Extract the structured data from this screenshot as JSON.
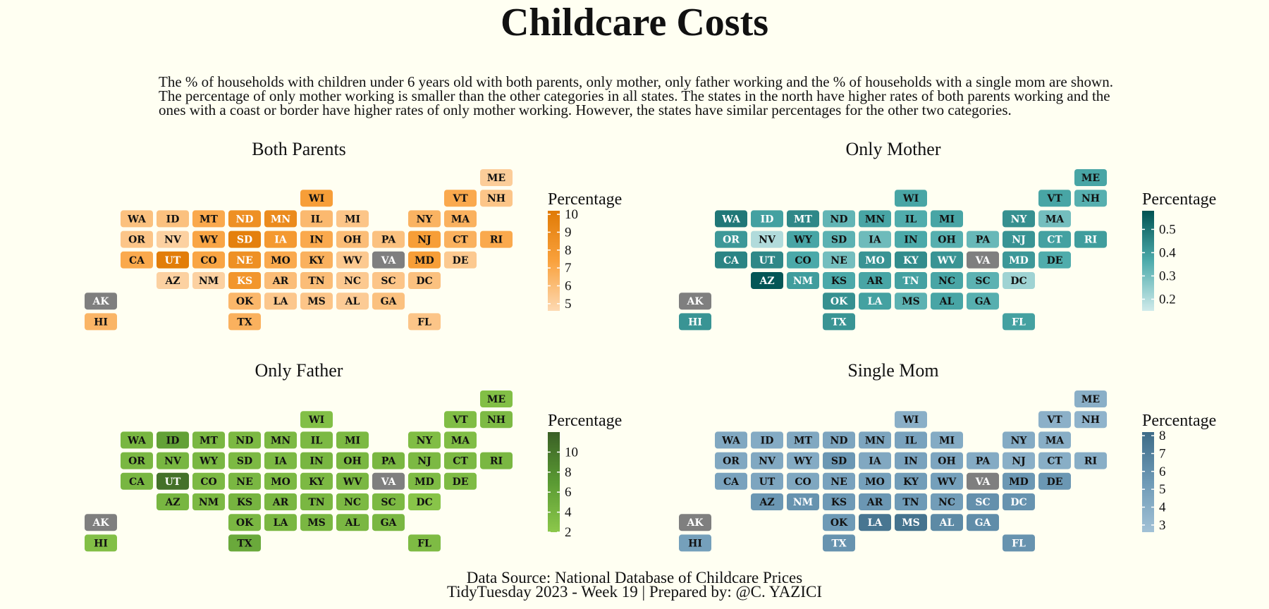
{
  "title": "Childcare Costs",
  "subtitle": "The % of households with children under 6 years old with both parents, only mother, only father working and the % of households with a single mom are shown. The percentage of only mother working is smaller than the other categories in all states. The states in the north have higher rates of both parents working and the ones with a coast or border have higher rates of only mother working. However, the states have similar percentages for the other two categories.",
  "caption": {
    "line1": "Data Source: National Database of Childcare Prices",
    "line2": "TidyTuesday 2023 - Week 19 | Prepared by: @C. YAZICI"
  },
  "grid": [
    [
      "ME",
      0,
      11
    ],
    [
      "WI",
      1,
      6
    ],
    [
      "VT",
      1,
      10
    ],
    [
      "NH",
      1,
      11
    ],
    [
      "WA",
      2,
      1
    ],
    [
      "ID",
      2,
      2
    ],
    [
      "MT",
      2,
      3
    ],
    [
      "ND",
      2,
      4
    ],
    [
      "MN",
      2,
      5
    ],
    [
      "IL",
      2,
      6
    ],
    [
      "MI",
      2,
      7
    ],
    [
      "NY",
      2,
      9
    ],
    [
      "MA",
      2,
      10
    ],
    [
      "OR",
      3,
      1
    ],
    [
      "NV",
      3,
      2
    ],
    [
      "WY",
      3,
      3
    ],
    [
      "SD",
      3,
      4
    ],
    [
      "IA",
      3,
      5
    ],
    [
      "IN",
      3,
      6
    ],
    [
      "OH",
      3,
      7
    ],
    [
      "PA",
      3,
      8
    ],
    [
      "NJ",
      3,
      9
    ],
    [
      "CT",
      3,
      10
    ],
    [
      "RI",
      3,
      11
    ],
    [
      "CA",
      4,
      1
    ],
    [
      "UT",
      4,
      2
    ],
    [
      "CO",
      4,
      3
    ],
    [
      "NE",
      4,
      4
    ],
    [
      "MO",
      4,
      5
    ],
    [
      "KY",
      4,
      6
    ],
    [
      "WV",
      4,
      7
    ],
    [
      "VA",
      4,
      8
    ],
    [
      "MD",
      4,
      9
    ],
    [
      "DE",
      4,
      10
    ],
    [
      "AZ",
      5,
      2
    ],
    [
      "NM",
      5,
      3
    ],
    [
      "KS",
      5,
      4
    ],
    [
      "AR",
      5,
      5
    ],
    [
      "TN",
      5,
      6
    ],
    [
      "NC",
      5,
      7
    ],
    [
      "SC",
      5,
      8
    ],
    [
      "DC",
      5,
      9
    ],
    [
      "AK",
      6,
      0
    ],
    [
      "OK",
      6,
      4
    ],
    [
      "LA",
      6,
      5
    ],
    [
      "MS",
      6,
      6
    ],
    [
      "AL",
      6,
      7
    ],
    [
      "GA",
      6,
      8
    ],
    [
      "HI",
      7,
      0
    ],
    [
      "TX",
      7,
      4
    ],
    [
      "FL",
      7,
      9
    ]
  ],
  "chart_data": [
    {
      "type": "heatmap",
      "title": "Both Parents",
      "legend_title": "Percentage",
      "legend_ticks": [
        10,
        9,
        8,
        7,
        6,
        5
      ],
      "range": [
        4.6,
        10.2
      ],
      "colors": {
        "low": "#fdd9b2",
        "mid": "#f9a13c",
        "high": "#e07a05",
        "missing": "#7f7f7f"
      },
      "values": {
        "ME": 5.2,
        "WI": 7.6,
        "VT": 7.0,
        "NH": 5.6,
        "WA": 5.8,
        "ID": 5.8,
        "MT": 7.0,
        "ND": 8.6,
        "MN": 9.0,
        "IL": 6.2,
        "MI": 5.6,
        "NY": 6.5,
        "MA": 6.6,
        "OR": 5.6,
        "NV": 5.0,
        "WY": 7.2,
        "SD": 9.8,
        "IA": 8.0,
        "IN": 7.0,
        "OH": 6.0,
        "PA": 5.8,
        "NJ": 7.6,
        "CT": 6.6,
        "RI": 7.0,
        "CA": 7.0,
        "UT": 10.0,
        "CO": 7.2,
        "NE": 8.6,
        "MO": 7.0,
        "KY": 6.6,
        "WV": 5.4,
        "VA": null,
        "MD": 7.6,
        "DE": 5.4,
        "AZ": 5.0,
        "NM": 5.0,
        "KS": 8.2,
        "AR": 6.0,
        "TN": 6.0,
        "NC": 5.4,
        "SC": 5.6,
        "DC": 5.8,
        "AK": null,
        "OK": 6.3,
        "LA": 5.5,
        "MS": 5.6,
        "AL": 5.3,
        "GA": 5.8,
        "HI": 6.4,
        "TX": 6.6,
        "FL": 5.6
      }
    },
    {
      "type": "heatmap",
      "title": "Only Mother",
      "legend_title": "Percentage",
      "legend_ticks": [
        0.5,
        0.4,
        0.3,
        0.2
      ],
      "range": [
        0.15,
        0.58
      ],
      "colors": {
        "low": "#cfeaea",
        "mid": "#4dabab",
        "high": "#005252",
        "missing": "#7f7f7f"
      },
      "values": {
        "ME": 0.38,
        "WI": 0.38,
        "VT": 0.38,
        "NH": 0.35,
        "WA": 0.49,
        "ID": 0.39,
        "MT": 0.45,
        "ND": 0.33,
        "MN": 0.38,
        "IL": 0.36,
        "MI": 0.38,
        "NY": 0.43,
        "MA": 0.3,
        "OR": 0.41,
        "NV": 0.2,
        "WY": 0.38,
        "SD": 0.34,
        "IA": 0.31,
        "IN": 0.37,
        "OH": 0.35,
        "PA": 0.32,
        "NJ": 0.42,
        "CT": 0.39,
        "RI": 0.4,
        "CA": 0.46,
        "UT": 0.45,
        "CO": 0.37,
        "NE": 0.3,
        "MO": 0.42,
        "KY": 0.44,
        "WV": 0.42,
        "VA": null,
        "MD": 0.41,
        "DE": 0.36,
        "AZ": 0.57,
        "NM": 0.4,
        "KS": 0.37,
        "AR": 0.38,
        "TN": 0.39,
        "NC": 0.38,
        "SC": 0.34,
        "DC": 0.23,
        "AK": null,
        "OK": 0.43,
        "LA": 0.39,
        "MS": 0.34,
        "AL": 0.38,
        "GA": 0.35,
        "HI": 0.42,
        "TX": 0.42,
        "FL": 0.39
      }
    },
    {
      "type": "heatmap",
      "title": "Only Father",
      "legend_title": "Percentage",
      "legend_ticks": [
        10,
        8,
        6,
        4,
        2
      ],
      "range": [
        2,
        12
      ],
      "colors": {
        "low": "#8cc84b",
        "mid": "#5a9a33",
        "high": "#3a5f25",
        "missing": "#7f7f7f"
      },
      "values": {
        "ME": 3.0,
        "WI": 3.0,
        "VT": 3.2,
        "NH": 3.5,
        "WA": 4.0,
        "ID": 6.2,
        "MT": 3.8,
        "ND": 3.6,
        "MN": 3.6,
        "IL": 3.6,
        "MI": 3.6,
        "NY": 3.2,
        "MA": 3.2,
        "OR": 3.8,
        "NV": 4.0,
        "WY": 3.8,
        "SD": 3.6,
        "IA": 3.6,
        "IN": 4.0,
        "OH": 3.8,
        "PA": 3.8,
        "NJ": 3.6,
        "CT": 3.6,
        "RI": 3.8,
        "CA": 4.0,
        "UT": 10.5,
        "CO": 3.6,
        "NE": 3.8,
        "MO": 3.6,
        "KY": 3.6,
        "WV": 3.8,
        "VA": null,
        "MD": 3.4,
        "DE": 3.4,
        "AZ": 4.0,
        "NM": 3.6,
        "KS": 4.2,
        "AR": 3.8,
        "TN": 3.8,
        "NC": 3.6,
        "SC": 3.6,
        "DC": 2.4,
        "AK": null,
        "OK": 3.8,
        "LA": 3.8,
        "MS": 3.8,
        "AL": 3.8,
        "GA": 3.8,
        "HI": 3.0,
        "TX": 5.4,
        "FL": 3.4
      }
    },
    {
      "type": "heatmap",
      "title": "Single Mom",
      "legend_title": "Percentage",
      "legend_ticks": [
        8,
        7,
        6,
        5,
        4,
        3
      ],
      "range": [
        2.6,
        8.2
      ],
      "colors": {
        "low": "#a2c1d6",
        "mid": "#6e9ab6",
        "high": "#3e6c87",
        "missing": "#7f7f7f"
      },
      "values": {
        "ME": 3.9,
        "WI": 3.9,
        "VT": 3.8,
        "NH": 3.6,
        "WA": 4.4,
        "ID": 4.2,
        "MT": 4.4,
        "ND": 4.6,
        "MN": 4.6,
        "IL": 4.8,
        "MI": 4.2,
        "NY": 4.2,
        "MA": 4.0,
        "OR": 4.4,
        "NV": 4.4,
        "WY": 4.2,
        "SD": 5.6,
        "IA": 4.4,
        "IN": 4.8,
        "OH": 4.6,
        "PA": 4.2,
        "NJ": 3.9,
        "CT": 4.0,
        "RI": 4.0,
        "CA": 4.8,
        "UT": 4.6,
        "CO": 4.5,
        "NE": 4.8,
        "MO": 5.0,
        "KY": 5.2,
        "WV": 5.0,
        "VA": null,
        "MD": 5.6,
        "DE": 5.6,
        "AZ": 5.6,
        "NM": 5.8,
        "KS": 5.4,
        "AR": 5.6,
        "TN": 5.4,
        "NC": 5.2,
        "SC": 6.0,
        "DC": 5.8,
        "AK": null,
        "OK": 5.4,
        "LA": 7.6,
        "MS": 7.8,
        "AL": 6.4,
        "GA": 6.2,
        "HI": 5.0,
        "TX": 5.8,
        "FL": 5.8
      }
    }
  ]
}
